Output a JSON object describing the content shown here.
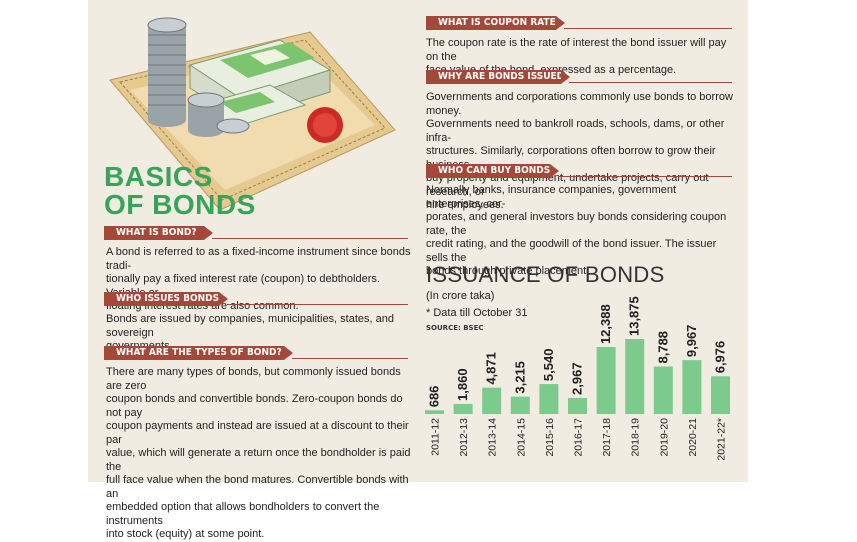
{
  "headline": [
    "BASICS",
    "OF BONDS"
  ],
  "sections": {
    "what_is_bond": {
      "header": "WHAT IS BOND?",
      "lines": [
        "A bond is referred to as a fixed-income instrument since bonds tradi-",
        "tionally pay a fixed interest rate (coupon) to debtholders. Variable or",
        "floating interest rates are also common."
      ]
    },
    "who_issues": {
      "header": "WHO ISSUES BONDS?",
      "lines": [
        "Bonds are issued by companies, municipalities, states, and sovereign",
        "governments."
      ]
    },
    "types": {
      "header": "WHAT ARE THE TYPES OF BOND?",
      "lines": [
        "There are many types of bonds, but commonly issued bonds are zero",
        "coupon bonds and convertible bonds. Zero-coupon bonds do not pay",
        "coupon payments and instead are issued at a discount to their par",
        "value, which will generate a return once the bondholder is paid the",
        "full face value when the bond matures. Convertible bonds with an",
        "embedded option that allows bondholders to convert the instruments",
        "into stock (equity) at some point."
      ]
    },
    "coupon_rate": {
      "header": "WHAT IS COUPON RATE?",
      "lines": [
        "The coupon rate is the rate of interest the bond issuer will pay on the",
        "face value of the bond, expressed as a percentage."
      ]
    },
    "why_issued": {
      "header": "WHY ARE BONDS ISSUED?",
      "lines": [
        "Governments and corporations commonly use bonds to borrow money.",
        "Governments need to bankroll roads, schools, dams, or other infra-",
        "structures. Similarly, corporations often borrow to grow their business,",
        "buy property and equipment, undertake projects, carry out research, or",
        "hire employees."
      ]
    },
    "who_can_buy": {
      "header": "WHO CAN BUY BONDS?",
      "lines": [
        "Normally banks, insurance companies, government enterprises, cor-",
        "porates, and general investors buy bonds considering coupon rate, the",
        "credit rating, and the goodwill of the bond issuer. The issuer sells the",
        "bonds through private placement."
      ]
    }
  },
  "chart_data": {
    "type": "bar",
    "title": "ISSUANCE OF BONDS",
    "subtitle": "(In crore taka)",
    "note": "* Data till October 31",
    "source": "SOURCE: BSEC",
    "categories": [
      "2011-12",
      "2012-13",
      "2013-14",
      "2014-15",
      "2015-16",
      "2016-17",
      "2017-18",
      "2018-19",
      "2019-20",
      "2020-21",
      "2021-22*"
    ],
    "values": [
      686,
      1860,
      4871,
      3215,
      5540,
      2967,
      12388,
      13875,
      8788,
      9967,
      6976
    ],
    "value_labels": [
      "686",
      "1,860",
      "4,871",
      "3,215",
      "5,540",
      "2,967",
      "12,388",
      "13,875",
      "8,788",
      "9,967",
      "6,976"
    ],
    "ylim": [
      0,
      13875
    ],
    "bar_color": "#7ccb8d",
    "grid": false
  },
  "colors": {
    "accent": "#a4483a",
    "headline": "#3aa35a",
    "panel": "#f1ece1"
  }
}
